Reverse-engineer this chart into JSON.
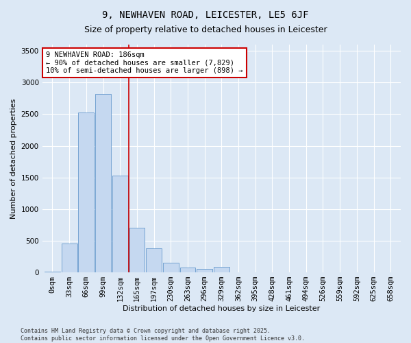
{
  "title_line1": "9, NEWHAVEN ROAD, LEICESTER, LE5 6JF",
  "title_line2": "Size of property relative to detached houses in Leicester",
  "xlabel": "Distribution of detached houses by size in Leicester",
  "ylabel": "Number of detached properties",
  "bar_color": "#c5d8f0",
  "bar_edge_color": "#6699cc",
  "background_color": "#dce8f5",
  "grid_color": "#ffffff",
  "categories": [
    "0sqm",
    "33sqm",
    "66sqm",
    "99sqm",
    "132sqm",
    "165sqm",
    "197sqm",
    "230sqm",
    "263sqm",
    "296sqm",
    "329sqm",
    "362sqm",
    "395sqm",
    "428sqm",
    "461sqm",
    "494sqm",
    "526sqm",
    "559sqm",
    "592sqm",
    "625sqm",
    "658sqm"
  ],
  "values": [
    10,
    460,
    2530,
    2820,
    1530,
    710,
    380,
    155,
    80,
    50,
    90,
    0,
    0,
    0,
    0,
    0,
    0,
    0,
    0,
    0,
    0
  ],
  "vline_x": 4.5,
  "vline_color": "#cc0000",
  "annotation_text_line1": "9 NEWHAVEN ROAD: 186sqm",
  "annotation_text_line2": "← 90% of detached houses are smaller (7,829)",
  "annotation_text_line3": "10% of semi-detached houses are larger (898) →",
  "ylim": [
    0,
    3600
  ],
  "yticks": [
    0,
    500,
    1000,
    1500,
    2000,
    2500,
    3000,
    3500
  ],
  "title_fontsize": 10,
  "subtitle_fontsize": 9,
  "axis_label_fontsize": 8,
  "tick_fontsize": 7.5,
  "annotation_fontsize": 7.5,
  "footnote": "Contains HM Land Registry data © Crown copyright and database right 2025.\nContains public sector information licensed under the Open Government Licence v3.0."
}
